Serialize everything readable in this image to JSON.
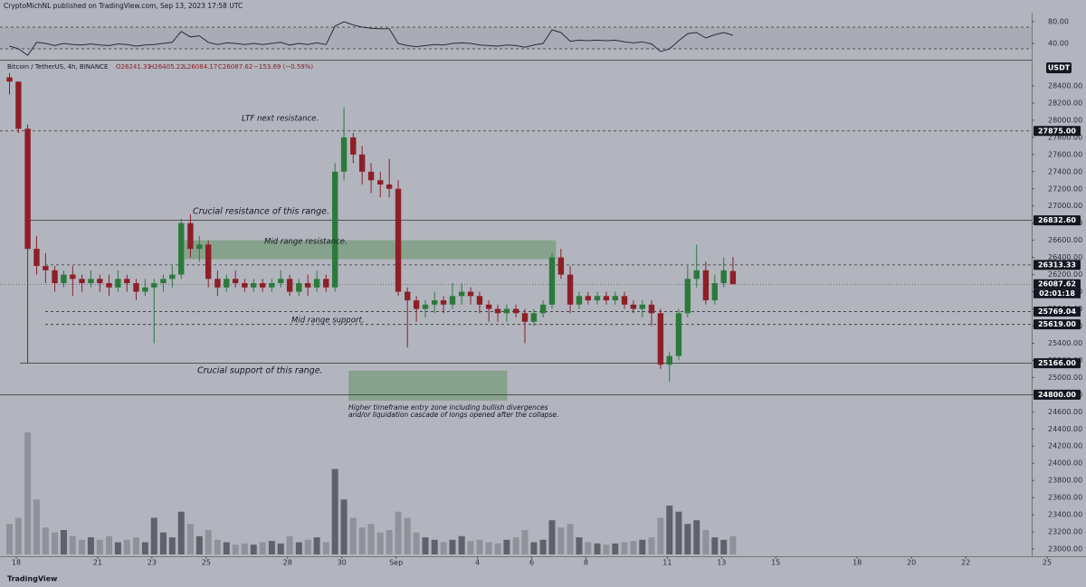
{
  "chart_data": {
    "type": "candlestick",
    "header": "CryptoMichNL published on TradingView.com, Sep 13, 2023 17:58 UTC",
    "symbol": "Bitcoin / TetherUS, 4h, BINANCE",
    "ohlc_legend": [
      "O26241.31",
      "H26405.22",
      "L26084.17",
      "C26087.62",
      "−153.69 (−0.59%)"
    ],
    "currency": "USDT",
    "countdown": "02:01:18",
    "brand": "TradingView",
    "up_color": "#2b7a3b",
    "down_color": "#8e1f27",
    "volume_up_color": "#5f626a",
    "volume_down_color": "#8f929a",
    "x": [
      17.75,
      18.08,
      18.42,
      18.75,
      19.08,
      19.42,
      19.75,
      20.08,
      20.42,
      20.75,
      21.08,
      21.42,
      21.75,
      22.08,
      22.42,
      22.75,
      23.08,
      23.42,
      23.75,
      24.08,
      24.42,
      24.75,
      25.08,
      25.42,
      25.75,
      26.08,
      26.42,
      26.75,
      27.08,
      27.42,
      27.75,
      28.08,
      28.42,
      28.75,
      29.08,
      29.42,
      29.75,
      30.08,
      30.42,
      30.75,
      31.08,
      31.42,
      31.75,
      32.08,
      32.42,
      32.75,
      33.08,
      33.42,
      33.75,
      34.08,
      34.42,
      34.75,
      35.08,
      35.42,
      35.75,
      36.08,
      36.42,
      36.75,
      37.08,
      37.42,
      37.75,
      38.08,
      38.42,
      38.75,
      39.08,
      39.42,
      39.75,
      40.08,
      40.42,
      40.75,
      41.08,
      41.42,
      41.75,
      42.08,
      42.42,
      42.75,
      43.08,
      43.42,
      43.75,
      44.08,
      44.42
    ],
    "open": [
      28500,
      28450,
      27900,
      26500,
      26300,
      26250,
      26100,
      26200,
      26150,
      26100,
      26150,
      26100,
      26050,
      26150,
      26100,
      26000,
      26050,
      26100,
      26150,
      26200,
      26800,
      26500,
      26550,
      26150,
      26050,
      26150,
      26100,
      26050,
      26100,
      26050,
      26100,
      26150,
      26000,
      26100,
      26050,
      26150,
      26050,
      27400,
      27800,
      27600,
      27400,
      27300,
      27250,
      27200,
      26000,
      25900,
      25800,
      25850,
      25900,
      25850,
      25950,
      26000,
      25950,
      25850,
      25800,
      25750,
      25800,
      25750,
      25650,
      25750,
      25850,
      26400,
      26200,
      25850,
      25950,
      25900,
      25950,
      25900,
      25950,
      25850,
      25800,
      25850,
      25750,
      25150,
      25250,
      25750,
      26150,
      26250,
      25900,
      26100,
      26241.31
    ],
    "high": [
      28550,
      28450,
      27950,
      26650,
      26450,
      26300,
      26250,
      26300,
      26200,
      26250,
      26200,
      26200,
      26250,
      26200,
      26150,
      26150,
      26150,
      26200,
      26300,
      26850,
      26900,
      26650,
      26600,
      26250,
      26200,
      26250,
      26150,
      26150,
      26150,
      26150,
      26250,
      26200,
      26150,
      26200,
      26250,
      26200,
      27500,
      28150,
      27850,
      27700,
      27500,
      27400,
      27550,
      27300,
      26050,
      25950,
      25900,
      26000,
      25950,
      26100,
      26100,
      26050,
      26000,
      25900,
      25850,
      25850,
      25850,
      25800,
      25800,
      25900,
      26450,
      26500,
      26300,
      26000,
      26000,
      26000,
      26000,
      26000,
      26000,
      25900,
      25900,
      25900,
      25800,
      25300,
      25800,
      26300,
      26550,
      26350,
      26200,
      26400,
      26405.22
    ],
    "low": [
      28300,
      27850,
      25166,
      26200,
      26100,
      26000,
      26050,
      25950,
      26000,
      26050,
      26000,
      25950,
      26000,
      26000,
      25900,
      25950,
      25400,
      26000,
      26050,
      26150,
      26400,
      26350,
      26050,
      25950,
      26000,
      26050,
      26000,
      26000,
      26000,
      26000,
      26050,
      25950,
      25950,
      25950,
      26000,
      26000,
      26000,
      27300,
      27500,
      27250,
      27150,
      27100,
      27100,
      25950,
      25350,
      25650,
      25700,
      25750,
      25750,
      25800,
      25850,
      25850,
      25750,
      25650,
      25650,
      25650,
      25700,
      25400,
      25600,
      25700,
      25800,
      26150,
      25750,
      25800,
      25850,
      25850,
      25850,
      25850,
      25800,
      25750,
      25700,
      25600,
      25100,
      24950,
      25200,
      25700,
      26050,
      25850,
      25850,
      26050,
      26084.17
    ],
    "close": [
      28450,
      27900,
      26500,
      26300,
      26250,
      26100,
      26200,
      26150,
      26100,
      26150,
      26100,
      26050,
      26150,
      26100,
      26000,
      26050,
      26100,
      26150,
      26200,
      26800,
      26500,
      26550,
      26150,
      26050,
      26150,
      26100,
      26050,
      26100,
      26050,
      26100,
      26150,
      26000,
      26100,
      26050,
      26150,
      26050,
      27400,
      27800,
      27600,
      27400,
      27300,
      27250,
      27200,
      26000,
      25900,
      25800,
      25850,
      25900,
      25850,
      25950,
      26000,
      25950,
      25850,
      25800,
      25750,
      25800,
      25750,
      25650,
      25750,
      25850,
      26400,
      26200,
      25850,
      25950,
      25900,
      25950,
      25900,
      25950,
      25850,
      25800,
      25850,
      25750,
      25150,
      25250,
      25750,
      26150,
      26250,
      25900,
      26100,
      26250,
      26087.62
    ],
    "volume": [
      25,
      30,
      100,
      45,
      22,
      18,
      20,
      15,
      12,
      14,
      12,
      15,
      10,
      12,
      14,
      10,
      30,
      18,
      14,
      35,
      25,
      15,
      20,
      12,
      10,
      8,
      9,
      8,
      10,
      11,
      9,
      15,
      10,
      12,
      14,
      10,
      70,
      45,
      30,
      22,
      25,
      18,
      20,
      35,
      30,
      18,
      14,
      12,
      10,
      12,
      15,
      11,
      12,
      10,
      9,
      12,
      14,
      20,
      10,
      12,
      28,
      22,
      25,
      14,
      10,
      9,
      8,
      9,
      10,
      11,
      12,
      14,
      30,
      40,
      35,
      25,
      28,
      20,
      14,
      12,
      15
    ],
    "xlim": [
      17.4,
      56.1
    ],
    "xticks": [
      18,
      21,
      23,
      25,
      28,
      30,
      {
        "value": 32,
        "label": "Sep"
      },
      {
        "value": 35,
        "label": "4"
      },
      {
        "value": 37,
        "label": "6"
      },
      {
        "value": 39,
        "label": "8"
      },
      {
        "value": 42,
        "label": "11"
      },
      {
        "value": 44,
        "label": "13"
      },
      {
        "value": 46,
        "label": "15"
      },
      {
        "value": 49,
        "label": "18"
      },
      {
        "value": 51,
        "label": "20"
      },
      {
        "value": 53,
        "label": "22"
      },
      {
        "value": 56,
        "label": "25"
      }
    ],
    "ylim": [
      22916,
      28695
    ],
    "yticks": [
      {
        "value": 23000,
        "label": "23000.00"
      },
      {
        "value": 23200,
        "label": "23200.00"
      },
      {
        "value": 23400,
        "label": "23400.00"
      },
      {
        "value": 23600,
        "label": "23600.00"
      },
      {
        "value": 23800,
        "label": "23800.00"
      },
      {
        "value": 24000,
        "label": "24000.00"
      },
      {
        "value": 24200,
        "label": "24200.00"
      },
      {
        "value": 24400,
        "label": "24400.00"
      },
      {
        "value": 24600,
        "label": "24600.00"
      },
      {
        "value": 24800,
        "label": "24800.00"
      },
      {
        "value": 25000,
        "label": "25000.00"
      },
      {
        "value": 25200,
        "label": "25200.00"
      },
      {
        "value": 25400,
        "label": "25400.00"
      },
      {
        "value": 25600,
        "label": "25600.00"
      },
      {
        "value": 25800,
        "label": "25800.00"
      },
      {
        "value": 26000,
        "label": "26000.00"
      },
      {
        "value": 26200,
        "label": "26200.00"
      },
      {
        "value": 26400,
        "label": "26400.00"
      },
      {
        "value": 26600,
        "label": "26600.00"
      },
      {
        "value": 26800,
        "label": "26800.00"
      },
      {
        "value": 27000,
        "label": "27000.00"
      },
      {
        "value": 27200,
        "label": "27200.00"
      },
      {
        "value": 27400,
        "label": "27400.00"
      },
      {
        "value": 27600,
        "label": "27600.00"
      },
      {
        "value": 27800,
        "label": "27800.00"
      },
      {
        "value": 28000,
        "label": "28000.00"
      },
      {
        "value": 28200,
        "label": "28200.00"
      },
      {
        "value": 28400,
        "label": "28400.00"
      }
    ],
    "levels": [
      {
        "value": 27875,
        "label": "27875.00",
        "style": "dashed"
      },
      {
        "value": 26832.6,
        "label": "26832.60",
        "style": "solid"
      },
      {
        "value": 26313.33,
        "label": "26313.33",
        "style": "dashed"
      },
      {
        "value": 26087.62,
        "label": "26087.62",
        "style": "dotted"
      },
      {
        "value": 25769.04,
        "label": "25769.04",
        "style": "dashed"
      },
      {
        "value": 25619,
        "label": "25619.00",
        "style": "dashed"
      },
      {
        "value": 25166,
        "label": "25166.00",
        "style": "solid"
      },
      {
        "value": 24800,
        "label": "24800.00",
        "style": "solid"
      }
    ],
    "zones": [
      {
        "x": [
          24.2,
          37.9
        ],
        "y": [
          26380,
          26600
        ],
        "color": "#7f9f84"
      },
      {
        "x": [
          30.25,
          36.1
        ],
        "y": [
          24730,
          25080
        ],
        "color": "#7f9f84"
      }
    ],
    "annotations": [
      "LTF next resistance.",
      "Crucial resistance of this range.",
      "Mid range resistance.",
      "Mid range support.",
      "Crucial support of this range.",
      "Higher timeframe entry zone including bullish divergences",
      "and/or liquidation cascade of longs opened after the collapse."
    ],
    "rsi": {
      "values": [
        35,
        30,
        18,
        42,
        40,
        36,
        40,
        38,
        37,
        39,
        37,
        36,
        39,
        38,
        35,
        37,
        38,
        40,
        42,
        62,
        52,
        54,
        42,
        38,
        41,
        40,
        38,
        40,
        38,
        40,
        42,
        37,
        40,
        38,
        41,
        38,
        72,
        80,
        74,
        70,
        68,
        67,
        67,
        40,
        36,
        34,
        36,
        38,
        37,
        40,
        41,
        40,
        37,
        36,
        35,
        37,
        36,
        33,
        37,
        40,
        65,
        60,
        44,
        46,
        45,
        46,
        45,
        46,
        43,
        41,
        43,
        39,
        25,
        30,
        45,
        58,
        60,
        50,
        56,
        60,
        55
      ],
      "color": "#2a2e39",
      "ylim": [
        10,
        95
      ],
      "yticks": [
        {
          "value": 40,
          "label": "40.00"
        },
        {
          "value": 80,
          "label": "80.00"
        }
      ],
      "bands": [
        30,
        70
      ]
    },
    "grid": false
  }
}
